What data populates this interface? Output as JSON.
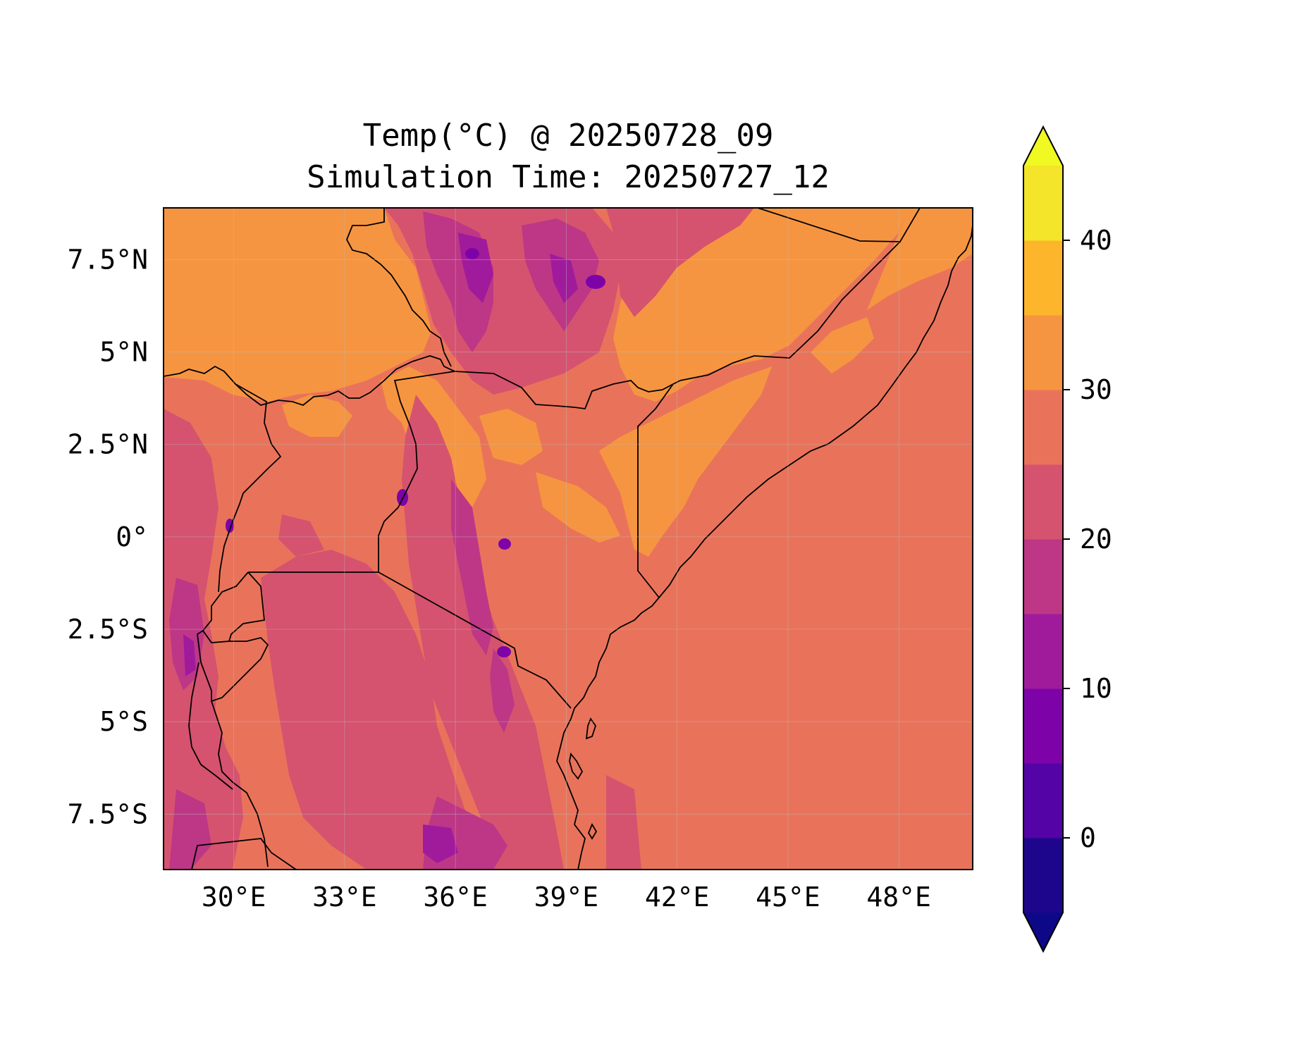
{
  "title": {
    "line1": "Temp(°C) @ 20250728_09",
    "line2": "Simulation Time: 20250727_12"
  },
  "map": {
    "extent": {
      "lon_min": 28.1,
      "lon_max": 50.0,
      "lat_min": -9.0,
      "lat_max": 8.9
    },
    "lon_ticks": [
      {
        "value": 30,
        "label": "30°E"
      },
      {
        "value": 33,
        "label": "33°E"
      },
      {
        "value": 36,
        "label": "36°E"
      },
      {
        "value": 39,
        "label": "39°E"
      },
      {
        "value": 42,
        "label": "42°E"
      },
      {
        "value": 45,
        "label": "45°E"
      },
      {
        "value": 48,
        "label": "48°E"
      }
    ],
    "lat_ticks": [
      {
        "value": 7.5,
        "label": "7.5°N"
      },
      {
        "value": 5,
        "label": "5°N"
      },
      {
        "value": 2.5,
        "label": "2.5°N"
      },
      {
        "value": 0,
        "label": "0°"
      },
      {
        "value": -2.5,
        "label": "2.5°S"
      },
      {
        "value": -5,
        "label": "5°S"
      },
      {
        "value": -7.5,
        "label": "7.5°S"
      }
    ]
  },
  "colorbar": {
    "min": -5,
    "max": 45,
    "ticks": [
      {
        "value": 0,
        "label": "0"
      },
      {
        "value": 10,
        "label": "10"
      },
      {
        "value": 20,
        "label": "20"
      },
      {
        "value": 30,
        "label": "30"
      },
      {
        "value": 40,
        "label": "40"
      }
    ],
    "levels": [
      {
        "from": -5,
        "to": 0,
        "color": "#1e068c"
      },
      {
        "from": 0,
        "to": 5,
        "color": "#5303a6"
      },
      {
        "from": 5,
        "to": 10,
        "color": "#7d03a8"
      },
      {
        "from": 10,
        "to": 15,
        "color": "#a01b9b"
      },
      {
        "from": 15,
        "to": 20,
        "color": "#bd3786"
      },
      {
        "from": 20,
        "to": 25,
        "color": "#d5536f"
      },
      {
        "from": 25,
        "to": 30,
        "color": "#e9735a"
      },
      {
        "from": 30,
        "to": 35,
        "color": "#f69541"
      },
      {
        "from": 35,
        "to": 40,
        "color": "#fdb62c"
      },
      {
        "from": 40,
        "to": 45,
        "color": "#f4e52a"
      }
    ],
    "under_color": "#0d0887",
    "over_color": "#f0f921"
  }
}
